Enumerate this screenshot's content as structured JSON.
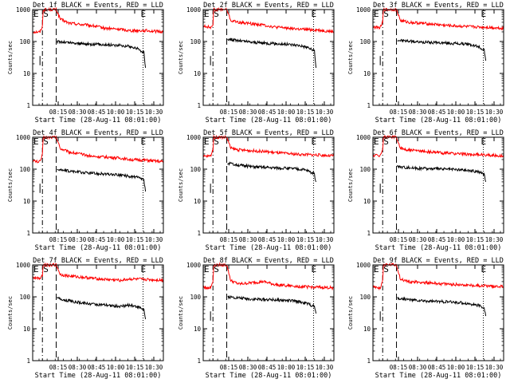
{
  "chart_data": [
    {
      "type": "line",
      "title": "Det 1f BLACK = Events, RED = LLD",
      "xlabel": "Start Time (28-Aug-11 08:01:00)",
      "ylabel": "Counts/sec",
      "yscale": "log",
      "ylim": [
        1,
        1000
      ],
      "y_ticks": [
        "1",
        "10",
        "100",
        "1000"
      ],
      "x_ticks": [
        "08:15",
        "08:30",
        "08:45",
        "10:00",
        "10:15",
        "10:30"
      ],
      "xlim": [
        "08:01",
        "10:42"
      ],
      "grid": false,
      "markers": [
        "E",
        "S",
        "E"
      ],
      "series": [
        {
          "color": "#ff0000",
          "x": [
            "08:01",
            "08:10",
            "08:13",
            "08:14",
            "08:30",
            "08:35",
            "08:45",
            "09:15",
            "09:30",
            "09:50",
            "10:00",
            "10:20",
            "10:42"
          ],
          "values": [
            200,
            200,
            300,
            1000,
            1000,
            500,
            380,
            310,
            260,
            240,
            220,
            220,
            200
          ]
        },
        {
          "color": "#000000",
          "x": [
            "08:31",
            "08:40",
            "09:00",
            "09:30",
            "09:50",
            "10:00",
            "10:10",
            "10:18",
            "10:20"
          ],
          "values": [
            100,
            95,
            85,
            80,
            75,
            70,
            60,
            45,
            15
          ]
        }
      ]
    },
    {
      "type": "line",
      "title": "Det 2f BLACK = Events, RED = LLD",
      "xlabel": "Start Time (28-Aug-11 08:01:00)",
      "ylabel": "Counts/sec",
      "yscale": "log",
      "ylim": [
        1,
        1000
      ],
      "y_ticks": [
        "1",
        "10",
        "100",
        "1000"
      ],
      "x_ticks": [
        "08:15",
        "08:30",
        "08:45",
        "10:00",
        "10:15",
        "10:30"
      ],
      "xlim": [
        "08:01",
        "10:42"
      ],
      "grid": false,
      "markers": [
        "E",
        "S",
        "E"
      ],
      "series": [
        {
          "color": "#ff0000",
          "x": [
            "08:01",
            "08:10",
            "08:13",
            "08:14",
            "08:30",
            "08:35",
            "08:45",
            "09:15",
            "09:30",
            "09:50",
            "10:00",
            "10:20",
            "10:42"
          ],
          "values": [
            300,
            280,
            350,
            1000,
            1000,
            450,
            400,
            330,
            280,
            260,
            240,
            230,
            200
          ]
        },
        {
          "color": "#000000",
          "x": [
            "08:31",
            "08:40",
            "09:00",
            "09:30",
            "09:50",
            "10:00",
            "10:10",
            "10:18",
            "10:20"
          ],
          "values": [
            120,
            110,
            95,
            85,
            80,
            75,
            65,
            50,
            15
          ]
        }
      ]
    },
    {
      "type": "line",
      "title": "Det 3f BLACK = Events, RED = LLD",
      "xlabel": "Start Time (28-Aug-11 08:01:00)",
      "ylabel": "Counts/sec",
      "yscale": "log",
      "ylim": [
        1,
        1000
      ],
      "y_ticks": [
        "1",
        "10",
        "100",
        "1000"
      ],
      "x_ticks": [
        "08:15",
        "08:30",
        "08:45",
        "10:00",
        "10:15",
        "10:30"
      ],
      "xlim": [
        "08:01",
        "10:42"
      ],
      "grid": false,
      "markers": [
        "E",
        "S",
        "E"
      ],
      "series": [
        {
          "color": "#ff0000",
          "x": [
            "08:01",
            "08:10",
            "08:13",
            "08:14",
            "08:30",
            "08:35",
            "08:45",
            "09:15",
            "09:30",
            "09:50",
            "10:00",
            "10:20",
            "10:42"
          ],
          "values": [
            280,
            270,
            400,
            1000,
            1000,
            450,
            400,
            350,
            320,
            300,
            290,
            280,
            260
          ]
        },
        {
          "color": "#000000",
          "x": [
            "08:31",
            "08:40",
            "09:00",
            "09:30",
            "09:50",
            "10:00",
            "10:10",
            "10:18",
            "10:20"
          ],
          "values": [
            110,
            105,
            95,
            90,
            85,
            80,
            70,
            55,
            25
          ]
        }
      ]
    },
    {
      "type": "line",
      "title": "Det 4f BLACK = Events, RED = LLD",
      "xlabel": "Start Time (28-Aug-11 08:01:00)",
      "ylabel": "Counts/sec",
      "yscale": "log",
      "ylim": [
        1,
        1000
      ],
      "y_ticks": [
        "1",
        "10",
        "100",
        "1000"
      ],
      "x_ticks": [
        "08:15",
        "08:30",
        "08:45",
        "10:00",
        "10:15",
        "10:30"
      ],
      "xlim": [
        "08:01",
        "10:42"
      ],
      "grid": false,
      "markers": [
        "E",
        "S",
        "E"
      ],
      "series": [
        {
          "color": "#ff0000",
          "x": [
            "08:01",
            "08:10",
            "08:13",
            "08:14",
            "08:30",
            "08:35",
            "08:45",
            "09:15",
            "09:30",
            "09:50",
            "10:00",
            "10:20",
            "10:42"
          ],
          "values": [
            180,
            170,
            280,
            1000,
            1000,
            450,
            350,
            250,
            240,
            220,
            200,
            190,
            170
          ]
        },
        {
          "color": "#000000",
          "x": [
            "08:31",
            "08:40",
            "09:00",
            "09:30",
            "09:50",
            "10:00",
            "10:10",
            "10:18",
            "10:20"
          ],
          "values": [
            100,
            90,
            80,
            70,
            65,
            60,
            55,
            45,
            20
          ]
        }
      ]
    },
    {
      "type": "line",
      "title": "Det 5f BLACK = Events, RED = LLD",
      "xlabel": "Start Time (28-Aug-11 08:01:00)",
      "ylabel": "Counts/sec",
      "yscale": "log",
      "ylim": [
        1,
        1000
      ],
      "y_ticks": [
        "1",
        "10",
        "100",
        "1000"
      ],
      "x_ticks": [
        "08:15",
        "08:30",
        "08:45",
        "10:00",
        "10:15",
        "10:30"
      ],
      "xlim": [
        "08:01",
        "10:42"
      ],
      "grid": false,
      "markers": [
        "E",
        "S",
        "E"
      ],
      "series": [
        {
          "color": "#ff0000",
          "x": [
            "08:01",
            "08:10",
            "08:13",
            "08:14",
            "08:30",
            "08:35",
            "08:45",
            "09:15",
            "09:30",
            "09:50",
            "10:00",
            "10:20",
            "10:42"
          ],
          "values": [
            250,
            260,
            400,
            1000,
            1000,
            450,
            400,
            360,
            330,
            300,
            290,
            280,
            260
          ]
        },
        {
          "color": "#000000",
          "x": [
            "08:31",
            "08:40",
            "09:00",
            "09:30",
            "09:50",
            "10:00",
            "10:10",
            "10:18",
            "10:20"
          ],
          "values": [
            150,
            140,
            120,
            110,
            105,
            100,
            90,
            70,
            40
          ]
        }
      ]
    },
    {
      "type": "line",
      "title": "Det 6f BLACK = Events, RED = LLD",
      "xlabel": "Start Time (28-Aug-11 08:01:00)",
      "ylabel": "Counts/sec",
      "yscale": "log",
      "ylim": [
        1,
        1000
      ],
      "y_ticks": [
        "1",
        "10",
        "100",
        "1000"
      ],
      "x_ticks": [
        "08:15",
        "08:30",
        "08:45",
        "10:00",
        "10:15",
        "10:30"
      ],
      "xlim": [
        "08:01",
        "10:42"
      ],
      "grid": false,
      "markers": [
        "E",
        "S",
        "E"
      ],
      "series": [
        {
          "color": "#ff0000",
          "x": [
            "08:01",
            "08:10",
            "08:13",
            "08:14",
            "08:30",
            "08:35",
            "08:45",
            "09:15",
            "09:30",
            "09:50",
            "10:00",
            "10:20",
            "10:42"
          ],
          "values": [
            270,
            270,
            400,
            1000,
            1000,
            450,
            400,
            340,
            320,
            300,
            290,
            280,
            260
          ]
        },
        {
          "color": "#000000",
          "x": [
            "08:31",
            "08:40",
            "09:00",
            "09:30",
            "09:50",
            "10:00",
            "10:10",
            "10:18",
            "10:20"
          ],
          "values": [
            120,
            115,
            105,
            100,
            95,
            90,
            85,
            70,
            40
          ]
        }
      ]
    },
    {
      "type": "line",
      "title": "Det 7f BLACK = Events, RED = LLD",
      "xlabel": "Start Time (28-Aug-11 08:01:00)",
      "ylabel": "Counts/sec",
      "yscale": "log",
      "ylim": [
        1,
        1000
      ],
      "y_ticks": [
        "1",
        "10",
        "100",
        "1000"
      ],
      "x_ticks": [
        "08:15",
        "08:30",
        "08:45",
        "10:00",
        "10:15",
        "10:30"
      ],
      "xlim": [
        "08:01",
        "10:42"
      ],
      "grid": false,
      "markers": [
        "E",
        "S",
        "E"
      ],
      "series": [
        {
          "color": "#ff0000",
          "x": [
            "08:01",
            "08:10",
            "08:13",
            "08:14",
            "08:30",
            "08:35",
            "08:45",
            "09:15",
            "09:30",
            "09:50",
            "10:00",
            "10:20",
            "10:42"
          ],
          "values": [
            400,
            380,
            500,
            1000,
            1000,
            500,
            450,
            380,
            350,
            330,
            360,
            350,
            330
          ]
        },
        {
          "color": "#000000",
          "x": [
            "08:31",
            "08:40",
            "09:00",
            "09:30",
            "09:50",
            "10:00",
            "10:10",
            "10:18",
            "10:20"
          ],
          "values": [
            90,
            80,
            65,
            55,
            50,
            55,
            50,
            40,
            20
          ]
        }
      ]
    },
    {
      "type": "line",
      "title": "Det 8f BLACK = Events, RED = LLD",
      "xlabel": "Start Time (28-Aug-11 08:01:00)",
      "ylabel": "Counts/sec",
      "yscale": "log",
      "ylim": [
        1,
        1000
      ],
      "y_ticks": [
        "1",
        "10",
        "100",
        "1000"
      ],
      "x_ticks": [
        "08:15",
        "08:30",
        "08:45",
        "10:00",
        "10:15",
        "10:30"
      ],
      "xlim": [
        "08:01",
        "10:42"
      ],
      "grid": false,
      "markers": [
        "E",
        "S",
        "E"
      ],
      "series": [
        {
          "color": "#ff0000",
          "x": [
            "08:01",
            "08:10",
            "08:13",
            "08:14",
            "08:30",
            "08:35",
            "08:45",
            "09:15",
            "09:30",
            "09:50",
            "10:00",
            "10:20",
            "10:42"
          ],
          "values": [
            200,
            190,
            300,
            1000,
            1000,
            320,
            250,
            300,
            240,
            220,
            210,
            200,
            190
          ]
        },
        {
          "color": "#000000",
          "x": [
            "08:31",
            "08:40",
            "09:00",
            "09:30",
            "09:50",
            "10:00",
            "10:10",
            "10:18",
            "10:20"
          ],
          "values": [
            100,
            95,
            85,
            80,
            75,
            70,
            60,
            50,
            30
          ]
        }
      ]
    },
    {
      "type": "line",
      "title": "Det 9f BLACK = Events, RED = LLD",
      "xlabel": "Start Time (28-Aug-11 08:01:00)",
      "ylabel": "Counts/sec",
      "yscale": "log",
      "ylim": [
        1,
        1000
      ],
      "y_ticks": [
        "1",
        "10",
        "100",
        "1000"
      ],
      "x_ticks": [
        "08:15",
        "08:30",
        "08:45",
        "10:00",
        "10:15",
        "10:30"
      ],
      "xlim": [
        "08:01",
        "10:42"
      ],
      "grid": false,
      "markers": [
        "E",
        "S",
        "E"
      ],
      "series": [
        {
          "color": "#ff0000",
          "x": [
            "08:01",
            "08:10",
            "08:13",
            "08:14",
            "08:30",
            "08:35",
            "08:45",
            "09:15",
            "09:30",
            "09:50",
            "10:00",
            "10:20",
            "10:42"
          ],
          "values": [
            200,
            190,
            320,
            1000,
            1000,
            350,
            300,
            270,
            250,
            240,
            230,
            220,
            210
          ]
        },
        {
          "color": "#000000",
          "x": [
            "08:31",
            "08:40",
            "09:00",
            "09:30",
            "09:50",
            "10:00",
            "10:10",
            "10:18",
            "10:20"
          ],
          "values": [
            90,
            85,
            75,
            70,
            65,
            60,
            55,
            45,
            25
          ]
        }
      ]
    }
  ]
}
